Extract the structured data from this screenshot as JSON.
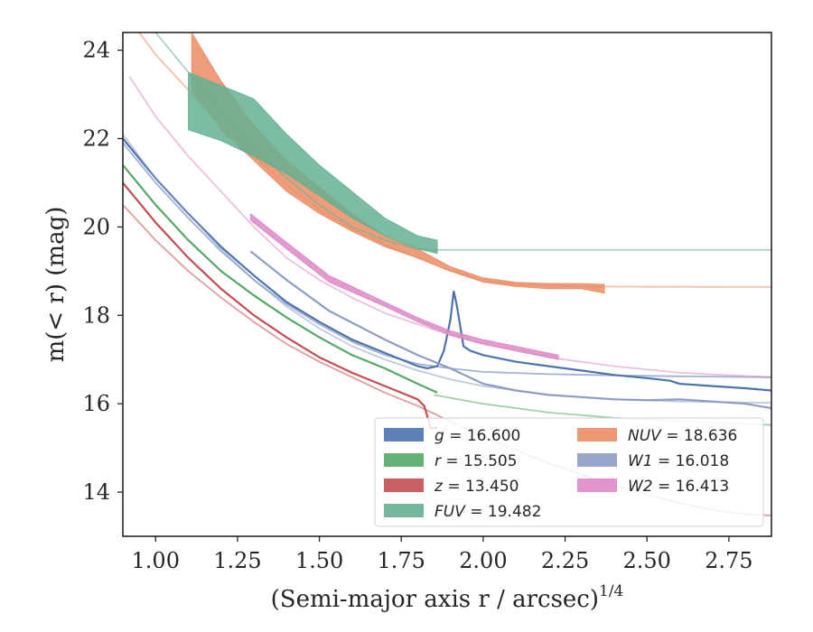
{
  "chart_data": {
    "type": "line",
    "xlabel": "(Semi-major axis r / arcsec)",
    "xlabel_sup": "1/4",
    "ylabel": "m(< r) (mag)",
    "xlim": [
      0.9,
      2.88
    ],
    "ylim": [
      24.4,
      13.0
    ],
    "y_inverted": true,
    "x_ticks": [
      1.0,
      1.25,
      1.5,
      1.75,
      2.0,
      2.25,
      2.5,
      2.75
    ],
    "x_tick_labels": [
      "1.00",
      "1.25",
      "1.50",
      "1.75",
      "2.00",
      "2.25",
      "2.50",
      "2.75"
    ],
    "y_ticks": [
      14,
      16,
      18,
      20,
      22,
      24
    ],
    "y_tick_labels": [
      "14",
      "16",
      "18",
      "20",
      "22",
      "24"
    ],
    "grid": false,
    "legend_position": "lower-right",
    "legend": [
      {
        "band": "g",
        "value": "16.600",
        "color": "#4c72b0"
      },
      {
        "band": "r",
        "value": "15.505",
        "color": "#55a868"
      },
      {
        "band": "z",
        "value": "13.450",
        "color": "#c44e52"
      },
      {
        "band": "FUV",
        "value": "19.482",
        "color": "#64b092"
      },
      {
        "band": "NUV",
        "value": "18.636",
        "color": "#eb8c64"
      },
      {
        "band": "W1",
        "value": "16.018",
        "color": "#8c9cc4"
      },
      {
        "band": "W2",
        "value": "16.413",
        "color": "#dd88c5"
      }
    ],
    "series": [
      {
        "band": "z",
        "color": "#c44e52",
        "model": [
          [
            0.9,
            20.5
          ],
          [
            1.0,
            19.7
          ],
          [
            1.1,
            19.0
          ],
          [
            1.2,
            18.4
          ],
          [
            1.3,
            17.85
          ],
          [
            1.4,
            17.35
          ],
          [
            1.5,
            16.95
          ],
          [
            1.6,
            16.6
          ],
          [
            1.7,
            16.25
          ],
          [
            1.8,
            15.95
          ],
          [
            1.9,
            15.6
          ],
          [
            2.0,
            15.25
          ],
          [
            2.1,
            14.95
          ],
          [
            2.2,
            14.65
          ],
          [
            2.3,
            14.4
          ],
          [
            2.4,
            14.15
          ],
          [
            2.5,
            13.95
          ],
          [
            2.6,
            13.75
          ],
          [
            2.7,
            13.6
          ],
          [
            2.8,
            13.5
          ],
          [
            2.88,
            13.47
          ]
        ],
        "profile": [
          [
            0.9,
            21.0
          ],
          [
            1.0,
            20.1
          ],
          [
            1.1,
            19.3
          ],
          [
            1.2,
            18.6
          ],
          [
            1.3,
            18.0
          ],
          [
            1.4,
            17.5
          ],
          [
            1.5,
            17.05
          ],
          [
            1.6,
            16.7
          ],
          [
            1.7,
            16.4
          ],
          [
            1.8,
            16.1
          ],
          [
            1.82,
            15.95
          ],
          [
            1.84,
            15.45
          ],
          [
            1.86,
            15.45
          ]
        ]
      },
      {
        "band": "r",
        "color": "#55a868",
        "model": [
          [
            1.85,
            16.2
          ],
          [
            2.0,
            16.0
          ],
          [
            2.2,
            15.8
          ],
          [
            2.4,
            15.68
          ],
          [
            2.6,
            15.6
          ],
          [
            2.88,
            15.52
          ]
        ],
        "profile": [
          [
            0.9,
            21.4
          ],
          [
            1.0,
            20.5
          ],
          [
            1.1,
            19.7
          ],
          [
            1.2,
            19.0
          ],
          [
            1.3,
            18.45
          ],
          [
            1.4,
            17.95
          ],
          [
            1.5,
            17.5
          ],
          [
            1.6,
            17.1
          ],
          [
            1.7,
            16.8
          ],
          [
            1.8,
            16.45
          ],
          [
            1.86,
            16.25
          ]
        ]
      },
      {
        "band": "g",
        "color": "#4c72b0",
        "model": [
          [
            0.9,
            21.9
          ],
          [
            1.0,
            21.0
          ],
          [
            1.1,
            20.2
          ],
          [
            1.2,
            19.45
          ],
          [
            1.3,
            18.8
          ],
          [
            1.4,
            18.25
          ],
          [
            1.5,
            17.8
          ],
          [
            1.6,
            17.4
          ],
          [
            1.7,
            17.1
          ],
          [
            1.8,
            16.9
          ],
          [
            1.9,
            16.8
          ],
          [
            2.0,
            16.72
          ],
          [
            2.2,
            16.67
          ],
          [
            2.4,
            16.64
          ],
          [
            2.6,
            16.62
          ],
          [
            2.88,
            16.6
          ]
        ],
        "profile": [
          [
            0.9,
            22.0
          ],
          [
            1.0,
            21.1
          ],
          [
            1.1,
            20.3
          ],
          [
            1.2,
            19.55
          ],
          [
            1.3,
            18.9
          ],
          [
            1.4,
            18.3
          ],
          [
            1.5,
            17.85
          ],
          [
            1.6,
            17.45
          ],
          [
            1.7,
            17.15
          ],
          [
            1.8,
            16.85
          ],
          [
            1.83,
            16.8
          ],
          [
            1.86,
            16.85
          ],
          [
            1.88,
            17.2
          ],
          [
            1.9,
            17.9
          ],
          [
            1.91,
            18.55
          ],
          [
            1.92,
            18.2
          ],
          [
            1.94,
            17.3
          ],
          [
            1.96,
            17.2
          ],
          [
            2.0,
            17.1
          ],
          [
            2.1,
            16.95
          ],
          [
            2.2,
            16.85
          ],
          [
            2.3,
            16.75
          ],
          [
            2.4,
            16.65
          ],
          [
            2.5,
            16.58
          ],
          [
            2.57,
            16.52
          ],
          [
            2.6,
            16.45
          ],
          [
            2.7,
            16.4
          ],
          [
            2.8,
            16.35
          ],
          [
            2.88,
            16.3
          ]
        ]
      },
      {
        "band": "W1",
        "color": "#8c9cc4",
        "model": [
          [
            0.9,
            22.1
          ],
          [
            1.0,
            21.1
          ],
          [
            1.1,
            20.3
          ],
          [
            1.2,
            19.5
          ],
          [
            1.3,
            18.8
          ],
          [
            1.4,
            18.2
          ],
          [
            1.5,
            17.7
          ],
          [
            1.6,
            17.3
          ],
          [
            1.7,
            17.0
          ],
          [
            1.8,
            16.75
          ],
          [
            1.9,
            16.55
          ],
          [
            2.0,
            16.4
          ],
          [
            2.2,
            16.2
          ],
          [
            2.4,
            16.1
          ],
          [
            2.6,
            16.05
          ],
          [
            2.88,
            16.02
          ]
        ],
        "profile": [
          [
            1.29,
            19.45
          ],
          [
            1.4,
            18.8
          ],
          [
            1.53,
            18.1
          ],
          [
            1.7,
            17.45
          ],
          [
            1.8,
            17.1
          ],
          [
            1.9,
            16.8
          ],
          [
            2.0,
            16.45
          ],
          [
            2.1,
            16.3
          ],
          [
            2.2,
            16.2
          ],
          [
            2.3,
            16.15
          ],
          [
            2.4,
            16.1
          ],
          [
            2.5,
            16.08
          ],
          [
            2.6,
            16.1
          ],
          [
            2.7,
            16.05
          ],
          [
            2.8,
            16.0
          ],
          [
            2.88,
            15.9
          ]
        ]
      },
      {
        "band": "W2",
        "color": "#dd88c5",
        "model": [
          [
            0.92,
            23.4
          ],
          [
            1.0,
            22.5
          ],
          [
            1.1,
            21.6
          ],
          [
            1.2,
            20.8
          ],
          [
            1.3,
            20.0
          ],
          [
            1.4,
            19.3
          ],
          [
            1.5,
            18.8
          ],
          [
            1.6,
            18.4
          ],
          [
            1.7,
            18.05
          ],
          [
            1.8,
            17.8
          ],
          [
            1.9,
            17.55
          ],
          [
            2.0,
            17.35
          ],
          [
            2.2,
            17.05
          ],
          [
            2.4,
            16.85
          ],
          [
            2.6,
            16.7
          ],
          [
            2.88,
            16.6
          ]
        ],
        "band_upper": [
          [
            1.29,
            20.15
          ],
          [
            1.4,
            19.5
          ],
          [
            1.53,
            18.75
          ],
          [
            1.7,
            18.2
          ],
          [
            1.8,
            17.85
          ],
          [
            1.9,
            17.55
          ],
          [
            2.0,
            17.35
          ],
          [
            2.1,
            17.2
          ],
          [
            2.23,
            17.0
          ]
        ],
        "band_lower": [
          [
            1.29,
            20.3
          ],
          [
            1.4,
            19.65
          ],
          [
            1.53,
            18.9
          ],
          [
            1.7,
            18.3
          ],
          [
            1.8,
            17.95
          ],
          [
            1.9,
            17.65
          ],
          [
            2.0,
            17.45
          ],
          [
            2.1,
            17.3
          ],
          [
            2.23,
            17.1
          ]
        ]
      },
      {
        "band": "NUV",
        "color": "#eb8c64",
        "model": [
          [
            0.95,
            24.4
          ],
          [
            1.0,
            23.9
          ],
          [
            1.1,
            23.1
          ],
          [
            1.2,
            22.3
          ],
          [
            1.3,
            21.6
          ],
          [
            1.4,
            20.95
          ],
          [
            1.5,
            20.4
          ],
          [
            1.6,
            19.95
          ],
          [
            1.7,
            19.6
          ],
          [
            1.8,
            19.3
          ],
          [
            1.9,
            19.0
          ],
          [
            2.0,
            18.8
          ],
          [
            2.1,
            18.7
          ],
          [
            2.3,
            18.65
          ],
          [
            2.88,
            18.64
          ]
        ],
        "band_upper": [
          [
            1.11,
            23.1
          ],
          [
            1.2,
            22.2
          ],
          [
            1.3,
            21.5
          ],
          [
            1.4,
            20.8
          ],
          [
            1.5,
            20.3
          ],
          [
            1.6,
            19.9
          ],
          [
            1.7,
            19.55
          ],
          [
            1.8,
            19.3
          ],
          [
            1.9,
            19.0
          ],
          [
            2.0,
            18.75
          ],
          [
            2.1,
            18.65
          ],
          [
            2.2,
            18.6
          ],
          [
            2.3,
            18.6
          ],
          [
            2.37,
            18.5
          ]
        ],
        "band_lower": [
          [
            1.11,
            24.4
          ],
          [
            1.2,
            23.3
          ],
          [
            1.3,
            22.3
          ],
          [
            1.4,
            21.5
          ],
          [
            1.5,
            20.9
          ],
          [
            1.6,
            20.3
          ],
          [
            1.7,
            19.8
          ],
          [
            1.8,
            19.5
          ],
          [
            1.9,
            19.1
          ],
          [
            2.0,
            18.85
          ],
          [
            2.1,
            18.75
          ],
          [
            2.2,
            18.72
          ],
          [
            2.3,
            18.72
          ],
          [
            2.37,
            18.7
          ]
        ]
      },
      {
        "band": "FUV",
        "color": "#64b092",
        "model": [
          [
            1.0,
            24.4
          ],
          [
            1.1,
            23.5
          ],
          [
            1.2,
            22.6
          ],
          [
            1.3,
            21.8
          ],
          [
            1.4,
            21.1
          ],
          [
            1.5,
            20.5
          ],
          [
            1.6,
            20.0
          ],
          [
            1.7,
            19.7
          ],
          [
            1.8,
            19.5
          ],
          [
            1.87,
            19.48
          ],
          [
            2.88,
            19.48
          ]
        ],
        "band_upper": [
          [
            1.1,
            22.2
          ],
          [
            1.2,
            21.95
          ],
          [
            1.3,
            21.6
          ],
          [
            1.4,
            21.2
          ],
          [
            1.5,
            20.7
          ],
          [
            1.6,
            20.2
          ],
          [
            1.7,
            19.8
          ],
          [
            1.8,
            19.5
          ],
          [
            1.86,
            19.4
          ]
        ],
        "band_lower": [
          [
            1.1,
            23.5
          ],
          [
            1.2,
            23.2
          ],
          [
            1.3,
            22.9
          ],
          [
            1.4,
            22.1
          ],
          [
            1.5,
            21.4
          ],
          [
            1.6,
            20.8
          ],
          [
            1.7,
            20.2
          ],
          [
            1.8,
            19.8
          ],
          [
            1.86,
            19.7
          ]
        ]
      }
    ]
  }
}
